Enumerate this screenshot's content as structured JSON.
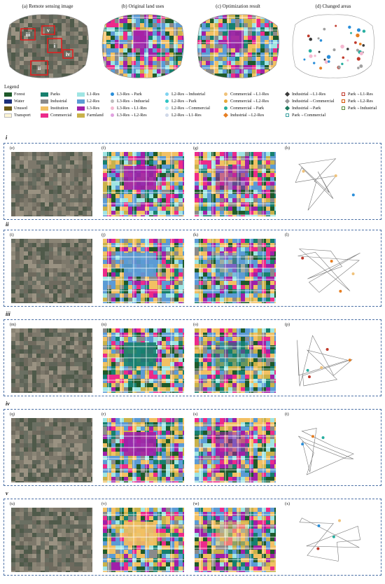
{
  "top_panels": [
    {
      "caption": "(a)      Remote sensing image",
      "kind": "sat",
      "regions": [
        "iii",
        "v",
        "i",
        "iv",
        "ii"
      ]
    },
    {
      "caption": "(b)      Original land uses",
      "kind": "map"
    },
    {
      "caption": "(c)      Optimization result",
      "kind": "map"
    },
    {
      "caption": "(d)      Changed areas",
      "kind": "changed"
    }
  ],
  "legend": {
    "title": "Legend",
    "items": [
      {
        "label": "Forest",
        "color": "#1e5a2a",
        "marker": "swatch"
      },
      {
        "label": "Parks",
        "color": "#16806e",
        "marker": "swatch"
      },
      {
        "label": "L1-Res",
        "color": "#9fe5e3",
        "marker": "swatch"
      },
      {
        "label": "L3-Res→Park",
        "color": "#2a8ed9",
        "marker": "dot"
      },
      {
        "label": "L2-Res→Industrial",
        "color": "#7fd3f0",
        "marker": "dot"
      },
      {
        "label": "Commercial→L1-Res",
        "color": "#f0c27a",
        "marker": "dot"
      },
      {
        "label": "Industrial→L1-Res",
        "color": "#3a3a3a",
        "marker": "dia"
      },
      {
        "label": "Park→L1-Res",
        "color": "#c0392b",
        "marker": "sq"
      },
      {
        "label": "Water",
        "color": "#1b2f7a",
        "marker": "swatch"
      },
      {
        "label": "Industrial",
        "color": "#8a8a8a",
        "marker": "swatch"
      },
      {
        "label": "L2-Res",
        "color": "#5b9bd5",
        "marker": "swatch"
      },
      {
        "label": "L3-Res→Indusrial",
        "color": "#bdbdbd",
        "marker": "dot"
      },
      {
        "label": "L2-Res→Park",
        "color": "#2ec4c4",
        "marker": "dot"
      },
      {
        "label": "Commercial→L2-Res",
        "color": "#e8a838",
        "marker": "dot"
      },
      {
        "label": "Industrial→Commercial",
        "color": "#9a9a9a",
        "marker": "dia"
      },
      {
        "label": "Park→L2-Res",
        "color": "#d35400",
        "marker": "sq"
      },
      {
        "label": "Unused",
        "color": "#6b5a14",
        "marker": "swatch"
      },
      {
        "label": "Institution",
        "color": "#f2c063",
        "marker": "swatch"
      },
      {
        "label": "L3-Res",
        "color": "#a020a8",
        "marker": "swatch"
      },
      {
        "label": "L3-Res→L1-Res",
        "color": "#f4b8d0",
        "marker": "dot"
      },
      {
        "label": "L2-Res→Commercial",
        "color": "#bfe8f3",
        "marker": "dot"
      },
      {
        "label": "Commercial→Park",
        "color": "#27ae9f",
        "marker": "dot"
      },
      {
        "label": "Industrial→Park",
        "color": "#1e7a5e",
        "marker": "dia"
      },
      {
        "label": "Park→Industrial",
        "color": "#5a8a3a",
        "marker": "sq"
      },
      {
        "label": "Transport",
        "color": "#fff6d5",
        "marker": "swatch"
      },
      {
        "label": "Commercial",
        "color": "#ec2a8a",
        "marker": "swatch"
      },
      {
        "label": "Farmland",
        "color": "#c9b24a",
        "marker": "swatch"
      },
      {
        "label": "L3-Res→L2-Res",
        "color": "#e0a0e0",
        "marker": "dot"
      },
      {
        "label": "L2-Res→L1-Res",
        "color": "#cfd8e8",
        "marker": "dot"
      },
      {
        "label": "Industrial→L2-Res",
        "color": "#e67e22",
        "marker": "dia"
      },
      {
        "label": "Park→Commercial",
        "color": "#3aa0a0",
        "marker": "sq"
      },
      {
        "label": "",
        "color": "#ffffff",
        "marker": "none"
      }
    ]
  },
  "rows": [
    {
      "roman": "i",
      "labels": [
        "(e)",
        "(f)",
        "(g)",
        "(h)"
      ],
      "accent": "#a020a8"
    },
    {
      "roman": "ii",
      "labels": [
        "(i)",
        "(j)",
        "(k)",
        "(l)"
      ],
      "accent": "#5b9bd5"
    },
    {
      "roman": "iii",
      "labels": [
        "(m)",
        "(n)",
        "(o)",
        "(p)"
      ],
      "accent": "#16806e"
    },
    {
      "roman": "iv",
      "labels": [
        "(q)",
        "(r)",
        "(s)",
        "(t)"
      ],
      "accent": "#a020a8"
    },
    {
      "roman": "v",
      "labels": [
        "(u)",
        "(v)",
        "(w)",
        "(x)"
      ],
      "accent": "#f2c063"
    }
  ]
}
